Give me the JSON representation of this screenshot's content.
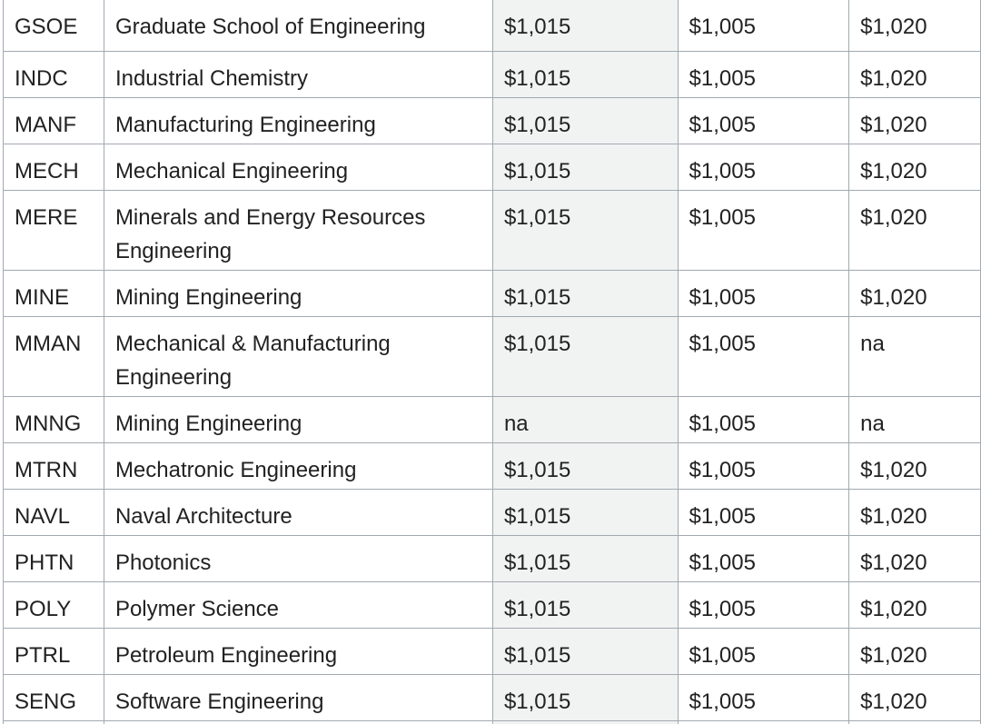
{
  "table": {
    "rows": [
      {
        "code": "GSOE",
        "name": "Graduate School of Engineering",
        "v1": "$1,015",
        "v2": "$1,005",
        "v3": "$1,020",
        "lines": 1
      },
      {
        "code": "INDC",
        "name": "Industrial Chemistry",
        "v1": "$1,015",
        "v2": "$1,005",
        "v3": "$1,020",
        "lines": 1
      },
      {
        "code": "MANF",
        "name": "Manufacturing Engineering",
        "v1": "$1,015",
        "v2": "$1,005",
        "v3": "$1,020",
        "lines": 1
      },
      {
        "code": "MECH",
        "name": "Mechanical Engineering",
        "v1": "$1,015",
        "v2": "$1,005",
        "v3": "$1,020",
        "lines": 1
      },
      {
        "code": "MERE",
        "name": "Minerals and Energy Resources Engineering",
        "v1": "$1,015",
        "v2": "$1,005",
        "v3": "$1,020",
        "lines": 2
      },
      {
        "code": "MINE",
        "name": "Mining Engineering",
        "v1": "$1,015",
        "v2": "$1,005",
        "v3": "$1,020",
        "lines": 1
      },
      {
        "code": "MMAN",
        "name": "Mechanical & Manufacturing Engineering",
        "v1": "$1,015",
        "v2": "$1,005",
        "v3": "na",
        "lines": 2
      },
      {
        "code": "MNNG",
        "name": "Mining Engineering",
        "v1": "na",
        "v2": "$1,005",
        "v3": "na",
        "lines": 1
      },
      {
        "code": "MTRN",
        "name": "Mechatronic Engineering",
        "v1": "$1,015",
        "v2": "$1,005",
        "v3": "$1,020",
        "lines": 1
      },
      {
        "code": "NAVL",
        "name": "Naval Architecture",
        "v1": "$1,015",
        "v2": "$1,005",
        "v3": "$1,020",
        "lines": 1
      },
      {
        "code": "PHTN",
        "name": "Photonics",
        "v1": "$1,015",
        "v2": "$1,005",
        "v3": "$1,020",
        "lines": 1
      },
      {
        "code": "POLY",
        "name": "Polymer Science",
        "v1": "$1,015",
        "v2": "$1,005",
        "v3": "$1,020",
        "lines": 1
      },
      {
        "code": "PTRL",
        "name": "Petroleum Engineering",
        "v1": "$1,015",
        "v2": "$1,005",
        "v3": "$1,020",
        "lines": 1
      },
      {
        "code": "SENG",
        "name": "Software Engineering",
        "v1": "$1,015",
        "v2": "$1,005",
        "v3": "$1,020",
        "lines": 1
      }
    ]
  }
}
